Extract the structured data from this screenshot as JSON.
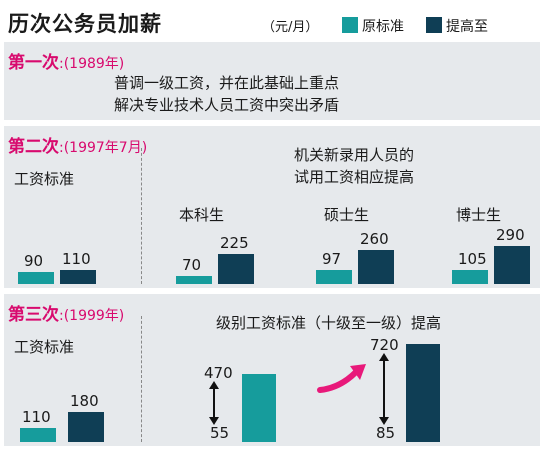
{
  "title": "历次公务员加薪",
  "unit": "（元/月）",
  "legend": [
    {
      "label": "原标准",
      "color": "#169c9c"
    },
    {
      "label": "提高至",
      "color": "#0f3e55"
    }
  ],
  "sections": [
    {
      "ordinal": "第一次",
      "year": ":(1989年)",
      "lines": [
        "普调一级工资，并在此基础上重点",
        "解决专业技术人员工资中突出矛盾"
      ]
    },
    {
      "ordinal": "第二次",
      "year": ":(1997年7月)",
      "left_label": "工资标准",
      "note": [
        "机关新录用人员的",
        "试用工资相应提高"
      ]
    },
    {
      "ordinal": "第三次",
      "year": ":(1999年)",
      "left_label": "工资标准",
      "note": [
        "级别工资标准（十级至一级）提高"
      ]
    }
  ],
  "chart_data": [
    {
      "type": "bar",
      "title": "第二次",
      "categories": [
        "工资标准",
        "本科生",
        "硕士生",
        "博士生"
      ],
      "series": [
        {
          "name": "原标准",
          "values": [
            90,
            70,
            97,
            105
          ]
        },
        {
          "name": "提高至",
          "values": [
            110,
            225,
            260,
            290
          ]
        }
      ],
      "value_labels": {
        "原标准": [
          "90",
          "70",
          "97",
          "105"
        ],
        "提高至": [
          "110",
          "225",
          "260",
          "290"
        ]
      },
      "ylim": [
        0,
        290
      ]
    },
    {
      "type": "bar",
      "title": "第三次",
      "categories": [
        "工资标准"
      ],
      "series": [
        {
          "name": "原标准",
          "values": [
            110
          ]
        },
        {
          "name": "提高至",
          "values": [
            180
          ]
        }
      ],
      "value_labels": {
        "原标准": [
          "110"
        ],
        "提高至": [
          "180"
        ]
      }
    },
    {
      "type": "bar",
      "title": "级别工资标准（十级至一级）",
      "ranges": [
        {
          "series": "原标准",
          "min": 55,
          "max": 470,
          "min_label": "55",
          "max_label": "470"
        },
        {
          "series": "提高至",
          "min": 85,
          "max": 720,
          "min_label": "85",
          "max_label": "720"
        }
      ]
    }
  ]
}
